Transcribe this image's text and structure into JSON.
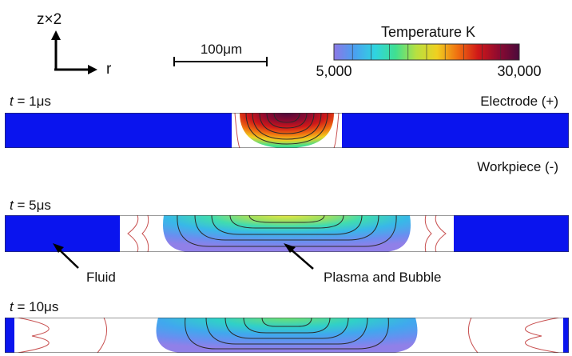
{
  "axes_indicator": {
    "vertical_label": "z×2",
    "horizontal_label": "r"
  },
  "scale_bar": {
    "label": "100μm"
  },
  "colorbar": {
    "title": "Temperature K",
    "min_label": "5,000",
    "max_label": "30,000",
    "colors": [
      "#8c78e6",
      "#4aa0f0",
      "#2fd4e0",
      "#40e090",
      "#b8e040",
      "#f0d020",
      "#f07010",
      "#d01818",
      "#8e0a30",
      "#4a0a3c"
    ]
  },
  "electrode_label": "Electrode (+)",
  "workpiece_label": "Workpiece (-)",
  "panels": [
    {
      "time_prefix": "t",
      "time_value": " = 1μs"
    },
    {
      "time_prefix": "t",
      "time_value": " = 5μs"
    },
    {
      "time_prefix": "t",
      "time_value": " = 10μs"
    }
  ],
  "annotations": {
    "fluid": "Fluid",
    "plasma": "Plasma and Bubble"
  },
  "colors": {
    "fluid": "#0a14ee",
    "contour": "#2a2a2a",
    "outer_contour": "#c85050"
  }
}
